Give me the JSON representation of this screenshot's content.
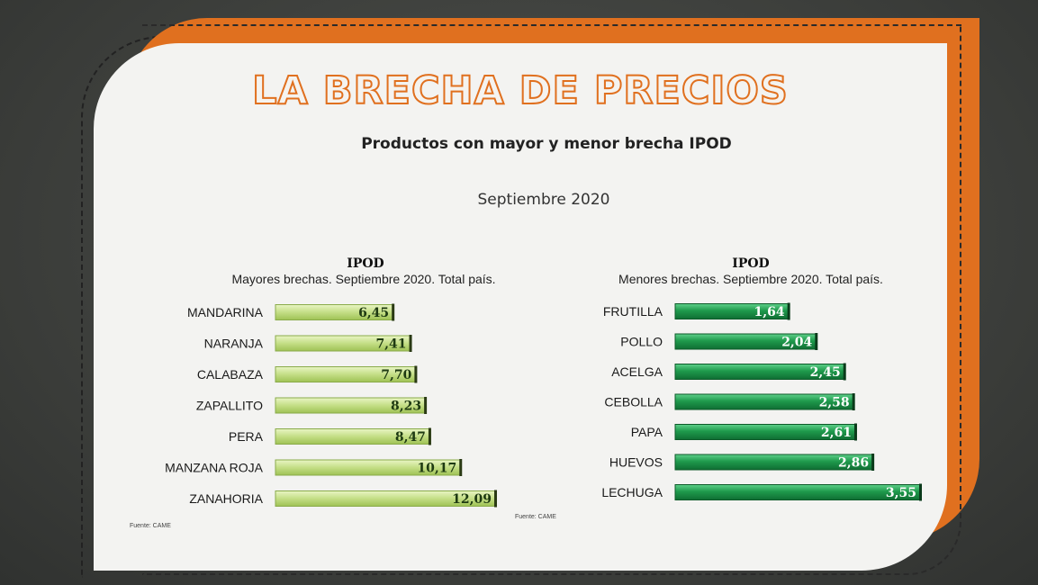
{
  "header": {
    "title": "LA BRECHA DE PRECIOS",
    "subtitle": "Productos con mayor y menor brecha IPOD",
    "period": "Septiembre 2020"
  },
  "colors": {
    "orange": "#e0701f",
    "light_green": "#c6e08c",
    "dark_green": "#1f9a4c"
  },
  "chart_data": [
    {
      "type": "bar",
      "orientation": "horizontal",
      "title": "IPOD",
      "subtitle": "Mayores brechas. Septiembre 2020. Total país.",
      "source": "Fuente: CAME",
      "categories": [
        "MANDARINA",
        "NARANJA",
        "CALABAZA",
        "ZAPALLITO",
        "PERA",
        "MANZANA ROJA",
        "ZANAHORIA"
      ],
      "values": [
        6.45,
        7.41,
        7.7,
        8.23,
        8.47,
        10.17,
        12.09
      ],
      "value_labels": [
        "6,45",
        "7,41",
        "7,70",
        "8,23",
        "8,47",
        "10,17",
        "12,09"
      ],
      "xlim": [
        0,
        12.09
      ],
      "grid": false,
      "color": "#c6e08c"
    },
    {
      "type": "bar",
      "orientation": "horizontal",
      "title": "IPOD",
      "subtitle": "Menores brechas. Septiembre 2020. Total país.",
      "source": "Fuente: CAME",
      "categories": [
        "FRUTILLA",
        "POLLO",
        "ACELGA",
        "CEBOLLA",
        "PAPA",
        "HUEVOS",
        "LECHUGA"
      ],
      "values": [
        1.64,
        2.04,
        2.45,
        2.58,
        2.61,
        2.86,
        3.55
      ],
      "value_labels": [
        "1,64",
        "2,04",
        "2,45",
        "2,58",
        "2,61",
        "2,86",
        "3,55"
      ],
      "xlim": [
        0,
        3.55
      ],
      "grid": false,
      "color": "#1f9a4c"
    }
  ]
}
